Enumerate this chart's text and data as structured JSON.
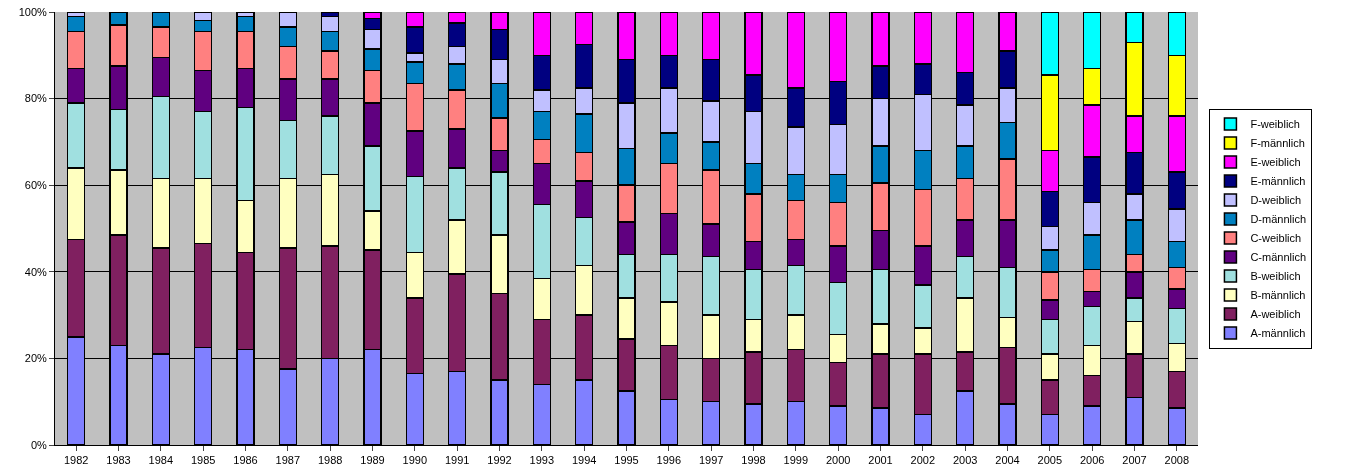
{
  "chart_data": {
    "type": "bar",
    "stacked": true,
    "grid": "y",
    "legend": "right",
    "categories": [
      "1982",
      "1983",
      "1984",
      "1985",
      "1986",
      "1987",
      "1988",
      "1989",
      "1990",
      "1991",
      "1992",
      "1993",
      "1994",
      "1995",
      "1996",
      "1997",
      "1998",
      "1999",
      "2000",
      "2001",
      "2002",
      "2003",
      "2004",
      "2005",
      "2006",
      "2007",
      "2008"
    ],
    "ylim": [
      0,
      100
    ],
    "yticks": [
      {
        "value": 0,
        "label": "0%"
      },
      {
        "value": 20,
        "label": "20%"
      },
      {
        "value": 40,
        "label": "40%"
      },
      {
        "value": 60,
        "label": "60%"
      },
      {
        "value": 80,
        "label": "80%"
      },
      {
        "value": 100,
        "label": "100%"
      }
    ],
    "series": [
      {
        "name": "A-männlich",
        "color": "#8080ff",
        "values": [
          25,
          23,
          21,
          22.5,
          22,
          17.5,
          20,
          22,
          16.5,
          17,
          15,
          14,
          15,
          12.5,
          10.5,
          10,
          9.5,
          10,
          9,
          8.5,
          7,
          12.5,
          9.5,
          7,
          9,
          11,
          8.5
        ]
      },
      {
        "name": "A-weiblich",
        "color": "#802060",
        "values": [
          22.5,
          25.5,
          24.5,
          24,
          22.5,
          28,
          26,
          23,
          17.5,
          22.5,
          20,
          15,
          15,
          12,
          12.5,
          10,
          12,
          12,
          10,
          12.5,
          14,
          9,
          13,
          8,
          7,
          10,
          8.5
        ]
      },
      {
        "name": "B-männlich",
        "color": "#ffffc0",
        "values": [
          16.5,
          15,
          16,
          15,
          12,
          16,
          16.5,
          9,
          10.5,
          12.5,
          13.5,
          9.5,
          11.5,
          9.5,
          10,
          10,
          7.5,
          8,
          6.5,
          7,
          6,
          12.5,
          7,
          6,
          7,
          7.5,
          6.5
        ]
      },
      {
        "name": "B-weiblich",
        "color": "#a0e0e0",
        "values": [
          15,
          14,
          19,
          15.5,
          21.5,
          13.5,
          13.5,
          15,
          17.5,
          12,
          14.5,
          17,
          11,
          10,
          11,
          13.5,
          11.5,
          11.5,
          12,
          12.5,
          10,
          9.5,
          11.5,
          8,
          9,
          5.5,
          8
        ]
      },
      {
        "name": "C-männlich",
        "color": "#600080",
        "values": [
          8,
          10,
          9,
          9.5,
          9,
          9.5,
          8.5,
          10,
          10.5,
          9,
          5,
          9.5,
          8.5,
          7.5,
          9.5,
          7.5,
          6.5,
          6,
          8.5,
          9,
          9,
          8.5,
          11,
          4.5,
          3.5,
          6,
          4.5
        ]
      },
      {
        "name": "C-weiblich",
        "color": "#ff8080",
        "values": [
          8.5,
          9.5,
          7,
          9,
          8.5,
          7.5,
          6.5,
          7.5,
          11,
          9,
          7.5,
          5.5,
          6.5,
          8.5,
          11.5,
          12.5,
          11,
          9,
          10,
          11,
          13,
          9.5,
          14,
          6.5,
          5,
          4,
          5
        ]
      },
      {
        "name": "D-männlich",
        "color": "#0080c0",
        "values": [
          3.5,
          3,
          3.5,
          2.5,
          3.5,
          4.5,
          4.5,
          5,
          5,
          6,
          8,
          6.5,
          9,
          8.5,
          7,
          6.5,
          7,
          6,
          6.5,
          8.5,
          9,
          7.5,
          8.5,
          5,
          8,
          8,
          6
        ]
      },
      {
        "name": "D-weiblich",
        "color": "#c0c0ff",
        "values": [
          1,
          null,
          null,
          2,
          1,
          3.5,
          3.5,
          4.5,
          2,
          4,
          5.5,
          5,
          6,
          10.5,
          10.5,
          9.5,
          12,
          11,
          11.5,
          11,
          13,
          9.5,
          8,
          5.5,
          7.5,
          6,
          7.5
        ]
      },
      {
        "name": "E-männlich",
        "color": "#000080",
        "values": [
          null,
          null,
          null,
          null,
          null,
          null,
          1,
          2.5,
          6,
          5.5,
          7,
          8,
          10,
          10,
          7.5,
          9.5,
          8.5,
          9,
          10,
          7.5,
          7,
          7.5,
          8.5,
          8,
          10.5,
          9.5,
          8.5
        ]
      },
      {
        "name": "E-weiblich",
        "color": "#ff00ff",
        "values": [
          null,
          null,
          null,
          null,
          null,
          null,
          null,
          1.5,
          3.5,
          2.5,
          4,
          10,
          7.5,
          11,
          10,
          11,
          14.5,
          17.5,
          16,
          12.5,
          12,
          14,
          9,
          9.5,
          12,
          8.5,
          13
        ]
      },
      {
        "name": "F-männlich",
        "color": "#ffff00",
        "values": [
          null,
          null,
          null,
          null,
          null,
          null,
          null,
          null,
          null,
          null,
          null,
          null,
          null,
          null,
          null,
          null,
          null,
          null,
          null,
          null,
          null,
          null,
          null,
          17.5,
          8.5,
          17,
          14
        ]
      },
      {
        "name": "F-weiblich",
        "color": "#00ffff",
        "values": [
          null,
          null,
          null,
          null,
          null,
          null,
          null,
          null,
          null,
          null,
          null,
          null,
          null,
          null,
          null,
          null,
          null,
          null,
          null,
          null,
          null,
          null,
          null,
          14.5,
          13,
          7,
          10
        ]
      }
    ]
  }
}
